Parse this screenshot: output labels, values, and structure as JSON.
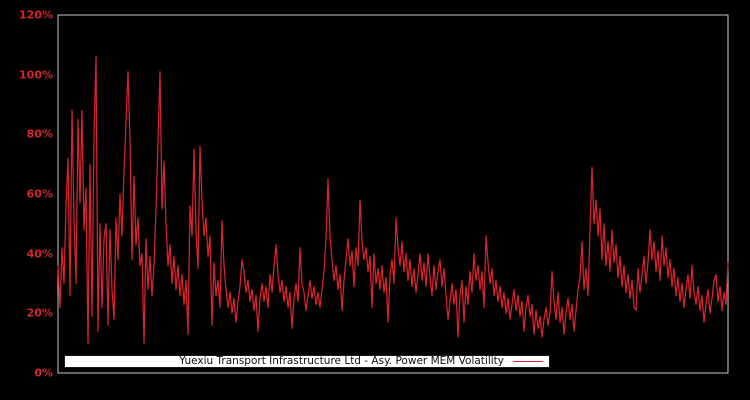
{
  "figure": {
    "background": "#000000",
    "frame_color": "#c9c9c9"
  },
  "legend": {
    "background": "#ffffff",
    "border_color": "#1a1a1a",
    "text_color": "#111111",
    "position": "lower center"
  },
  "chart_data": {
    "type": "line",
    "title": "",
    "xlabel": "",
    "ylabel": "",
    "ylim": [
      0,
      120
    ],
    "yticks": [
      0,
      20,
      40,
      60,
      80,
      100,
      120
    ],
    "ytick_labels": [
      "0%",
      "20%",
      "40%",
      "60%",
      "80%",
      "100%",
      "120%"
    ],
    "ytick_color": "#d9232d",
    "xtick_labels": [],
    "grid": false,
    "legend_position": "lower center",
    "series": [
      {
        "name": "Yuexiu Transport Infrastructure Ltd - Asy. Power MEM Volatility",
        "color": "#d9232d",
        "unit": "percent",
        "values": [
          36,
          22,
          42,
          30,
          56,
          72,
          26,
          88,
          52,
          30,
          85,
          57,
          88,
          48,
          62,
          10,
          70,
          19,
          80,
          106,
          14,
          50,
          22,
          45,
          50,
          16,
          48,
          28,
          18,
          52,
          38,
          60,
          46,
          68,
          84,
          101,
          78,
          38,
          66,
          43,
          52,
          36,
          40,
          10,
          45,
          28,
          39,
          26,
          36,
          55,
          78,
          101,
          55,
          71,
          50,
          36,
          43,
          30,
          39,
          28,
          36,
          26,
          33,
          23,
          31,
          13,
          56,
          46,
          75,
          48,
          35,
          76,
          58,
          46,
          52,
          39,
          46,
          16,
          37,
          26,
          31,
          22,
          51,
          36,
          28,
          22,
          27,
          20,
          25,
          17,
          24,
          29,
          38,
          34,
          27,
          31,
          24,
          28,
          21,
          26,
          14,
          25,
          30,
          24,
          29,
          22,
          33,
          27,
          36,
          43,
          33,
          27,
          31,
          24,
          29,
          22,
          27,
          15,
          25,
          30,
          24,
          42,
          30,
          27,
          21,
          26,
          31,
          25,
          29,
          23,
          27,
          22,
          28,
          34,
          45,
          65,
          46,
          38,
          31,
          36,
          28,
          33,
          21,
          31,
          38,
          45,
          36,
          41,
          29,
          42,
          36,
          58,
          44,
          38,
          42,
          34,
          39,
          22,
          40,
          30,
          35,
          28,
          36,
          27,
          32,
          17,
          33,
          38,
          30,
          52,
          42,
          36,
          44,
          34,
          40,
          31,
          38,
          29,
          35,
          27,
          33,
          40,
          31,
          37,
          29,
          40,
          32,
          26,
          36,
          28,
          34,
          38,
          29,
          35,
          26,
          18,
          24,
          30,
          23,
          28,
          12,
          26,
          31,
          17,
          29,
          23,
          34,
          27,
          40,
          31,
          36,
          28,
          34,
          22,
          46,
          37,
          30,
          35,
          26,
          31,
          24,
          29,
          22,
          27,
          20,
          25,
          18,
          23,
          28,
          21,
          26,
          19,
          24,
          14,
          22,
          26,
          19,
          23,
          13,
          21,
          15,
          19,
          12,
          18,
          22,
          16,
          20,
          34,
          24,
          18,
          27,
          17,
          22,
          13,
          20,
          25,
          18,
          23,
          14,
          21,
          28,
          32,
          44,
          28,
          35,
          26,
          48,
          69,
          50,
          58,
          46,
          55,
          38,
          50,
          36,
          44,
          34,
          48,
          37,
          43,
          32,
          39,
          29,
          36,
          27,
          33,
          25,
          31,
          22,
          21,
          35,
          27,
          33,
          39,
          30,
          37,
          48,
          38,
          44,
          34,
          41,
          31,
          46,
          36,
          42,
          32,
          38,
          29,
          35,
          26,
          32,
          24,
          30,
          22,
          28,
          33,
          25,
          36,
          27,
          23,
          29,
          21,
          26,
          17,
          23,
          28,
          20,
          25,
          31,
          33,
          24,
          29,
          21,
          27,
          23,
          37
        ]
      }
    ]
  }
}
